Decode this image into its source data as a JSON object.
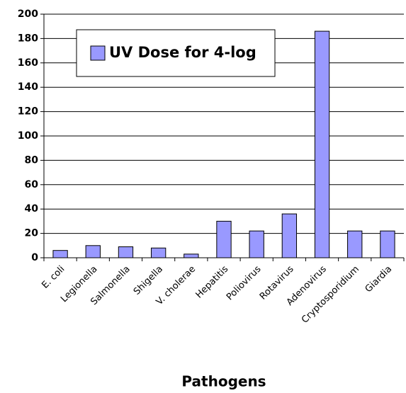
{
  "chart_data": {
    "type": "bar",
    "x_label": "Pathogens",
    "categories": [
      "E. coli",
      "Legionella",
      "Salmonella",
      "Shigella",
      "V. cholerae",
      "Hepatitis",
      "Poliovirus",
      "Rotavirus",
      "Adenovirus",
      "Cryptosporidium",
      "Giardia"
    ],
    "series": [
      {
        "name": "UV Dose for 4-log",
        "color": "#9999ff",
        "values": [
          6,
          10,
          9,
          8,
          3,
          30,
          22,
          36,
          186,
          22,
          22
        ]
      }
    ],
    "ylim": [
      0,
      200
    ],
    "yticks": [
      0,
      20,
      40,
      60,
      80,
      100,
      120,
      140,
      160,
      180,
      200
    ],
    "grid": true
  }
}
